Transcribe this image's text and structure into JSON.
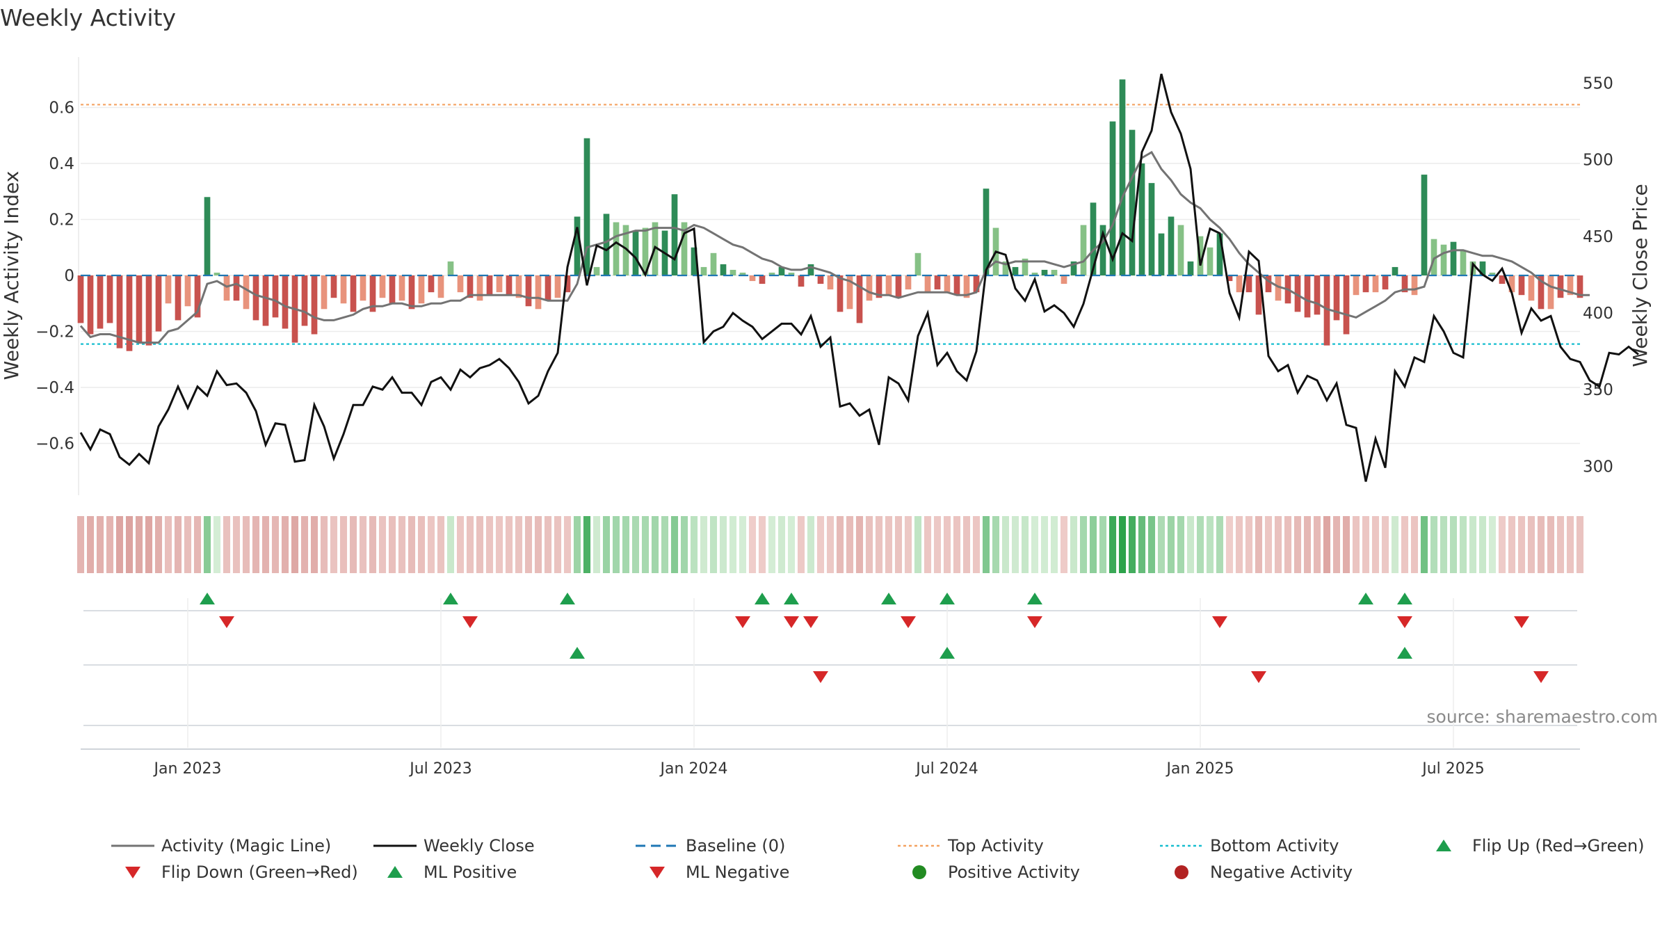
{
  "title": "Weekly Activity",
  "source": "source: sharemaestro.com",
  "chart_data": {
    "type": "bar",
    "title": "Weekly Activity",
    "xlabel": "",
    "ylabel": "Weekly Activity Index",
    "ylabel_right": "Weekly Close Price",
    "ylim": [
      -0.78,
      0.78
    ],
    "ylim_right": [
      282,
      567
    ],
    "y_ticks": [
      {
        "value": 0.6,
        "label": "0.6"
      },
      {
        "value": 0.4,
        "label": "0.4"
      },
      {
        "value": 0.2,
        "label": "0.2"
      },
      {
        "value": 0,
        "label": "0"
      },
      {
        "value": -0.2,
        "label": "−0.2"
      },
      {
        "value": -0.4,
        "label": "−0.4"
      },
      {
        "value": -0.6,
        "label": "−0.6"
      }
    ],
    "y_ticks_right": [
      {
        "value": 550,
        "label": "550"
      },
      {
        "value": 500,
        "label": "500"
      },
      {
        "value": 450,
        "label": "450"
      },
      {
        "value": 400,
        "label": "400"
      },
      {
        "value": 350,
        "label": "350"
      },
      {
        "value": 300,
        "label": "300"
      }
    ],
    "x_ticks": [
      {
        "week": 11,
        "label": "Jan 2023"
      },
      {
        "week": 37,
        "label": "Jul 2023"
      },
      {
        "week": 63,
        "label": "Jan 2024"
      },
      {
        "week": 89,
        "label": "Jul 2024"
      },
      {
        "week": 115,
        "label": "Jan 2025"
      },
      {
        "week": 141,
        "label": "Jul 2025"
      }
    ],
    "start_week_label": "2022-10-17",
    "top_activity": 0.61,
    "bottom_activity": -0.245,
    "baseline": 0,
    "activity_index": [
      -0.17,
      -0.21,
      -0.19,
      -0.17,
      -0.26,
      -0.27,
      -0.24,
      -0.25,
      -0.2,
      -0.1,
      -0.16,
      -0.11,
      -0.15,
      0.28,
      0.01,
      -0.09,
      -0.09,
      -0.12,
      -0.16,
      -0.18,
      -0.15,
      -0.19,
      -0.24,
      -0.18,
      -0.21,
      -0.12,
      -0.08,
      -0.1,
      -0.13,
      -0.09,
      -0.13,
      -0.08,
      -0.1,
      -0.09,
      -0.12,
      -0.1,
      -0.06,
      -0.08,
      0.05,
      -0.06,
      -0.08,
      -0.09,
      -0.07,
      -0.06,
      -0.07,
      -0.08,
      -0.11,
      -0.12,
      -0.09,
      -0.08,
      -0.06,
      0.21,
      0.49,
      0.03,
      0.22,
      0.19,
      0.18,
      0.16,
      0.17,
      0.19,
      0.16,
      0.29,
      0.19,
      0.1,
      0.03,
      0.08,
      0.04,
      0.02,
      0.01,
      -0.02,
      -0.03,
      0.01,
      0.03,
      0.01,
      -0.04,
      0.04,
      -0.03,
      -0.05,
      -0.13,
      -0.12,
      -0.17,
      -0.09,
      -0.08,
      -0.07,
      -0.08,
      -0.05,
      0.08,
      -0.06,
      -0.05,
      -0.06,
      -0.07,
      -0.08,
      -0.06,
      0.31,
      0.17,
      0.05,
      0.03,
      0.06,
      0.01,
      0.02,
      0.02,
      -0.03,
      0.05,
      0.18,
      0.26,
      0.18,
      0.55,
      0.7,
      0.52,
      0.4,
      0.33,
      0.15,
      0.21,
      0.18,
      0.05,
      0.14,
      0.1,
      0.15,
      -0.02,
      -0.06,
      -0.06,
      -0.14,
      -0.06,
      -0.09,
      -0.1,
      -0.13,
      -0.15,
      -0.14,
      -0.25,
      -0.16,
      -0.21,
      -0.07,
      -0.06,
      -0.06,
      -0.05,
      0.03,
      -0.06,
      -0.07,
      0.36,
      0.13,
      0.11,
      0.12,
      0.09,
      0.05,
      0.05,
      0.01,
      -0.03,
      -0.06,
      -0.07,
      -0.09,
      -0.12,
      -0.12,
      -0.08,
      -0.07,
      -0.08
    ],
    "magic_line": [
      -0.18,
      -0.22,
      -0.21,
      -0.21,
      -0.22,
      -0.23,
      -0.24,
      -0.24,
      -0.24,
      -0.2,
      -0.19,
      -0.16,
      -0.13,
      -0.03,
      -0.02,
      -0.04,
      -0.03,
      -0.05,
      -0.07,
      -0.08,
      -0.09,
      -0.11,
      -0.12,
      -0.13,
      -0.15,
      -0.16,
      -0.16,
      -0.15,
      -0.14,
      -0.12,
      -0.11,
      -0.11,
      -0.1,
      -0.1,
      -0.11,
      -0.11,
      -0.1,
      -0.1,
      -0.09,
      -0.09,
      -0.07,
      -0.07,
      -0.07,
      -0.07,
      -0.07,
      -0.07,
      -0.08,
      -0.08,
      -0.09,
      -0.09,
      -0.09,
      -0.03,
      0.1,
      0.11,
      0.12,
      0.14,
      0.15,
      0.16,
      0.16,
      0.17,
      0.17,
      0.17,
      0.16,
      0.18,
      0.17,
      0.15,
      0.13,
      0.11,
      0.1,
      0.08,
      0.06,
      0.05,
      0.03,
      0.02,
      0.02,
      0.03,
      0.02,
      0.01,
      -0.01,
      -0.02,
      -0.04,
      -0.06,
      -0.07,
      -0.07,
      -0.08,
      -0.07,
      -0.06,
      -0.06,
      -0.06,
      -0.06,
      -0.07,
      -0.07,
      -0.06,
      0.02,
      0.05,
      0.04,
      0.05,
      0.05,
      0.05,
      0.05,
      0.04,
      0.03,
      0.04,
      0.05,
      0.09,
      0.12,
      0.18,
      0.28,
      0.35,
      0.42,
      0.44,
      0.38,
      0.34,
      0.29,
      0.26,
      0.24,
      0.2,
      0.17,
      0.13,
      0.08,
      0.04,
      0.01,
      -0.02,
      -0.04,
      -0.05,
      -0.07,
      -0.09,
      -0.1,
      -0.12,
      -0.13,
      -0.14,
      -0.15,
      -0.13,
      -0.11,
      -0.09,
      -0.06,
      -0.05,
      -0.05,
      -0.04,
      0.06,
      0.08,
      0.09,
      0.09,
      0.08,
      0.07,
      0.07,
      0.06,
      0.05,
      0.03,
      0.01,
      -0.02,
      -0.04,
      -0.05,
      -0.06,
      -0.07,
      -0.07
    ],
    "weekly_close": [
      322,
      311,
      324,
      321,
      306,
      301,
      308,
      302,
      326,
      337,
      352,
      338,
      352,
      346,
      362,
      353,
      354,
      348,
      336,
      314,
      328,
      327,
      303,
      304,
      340,
      326,
      305,
      321,
      340,
      340,
      352,
      350,
      358,
      348,
      348,
      340,
      355,
      358,
      350,
      363,
      358,
      364,
      366,
      370,
      364,
      355,
      341,
      346,
      362,
      374,
      430,
      456,
      418,
      444,
      441,
      446,
      442,
      436,
      425,
      443,
      439,
      435,
      452,
      455,
      381,
      388,
      391,
      400,
      395,
      391,
      383,
      388,
      393,
      393,
      386,
      398,
      378,
      384,
      339,
      341,
      333,
      337,
      314,
      358,
      354,
      343,
      385,
      400,
      366,
      374,
      362,
      356,
      375,
      428,
      440,
      438,
      416,
      408,
      422,
      401,
      405,
      400,
      391,
      406,
      429,
      452,
      435,
      452,
      447,
      505,
      519,
      556,
      531,
      517,
      494,
      431,
      455,
      452,
      413,
      397,
      440,
      434,
      372,
      362,
      366,
      348,
      359,
      356,
      343,
      354,
      327,
      325,
      290,
      318,
      299,
      362,
      352,
      371,
      368,
      398,
      388,
      374,
      371,
      432,
      425,
      421,
      429,
      413,
      387,
      403,
      395,
      398,
      378,
      370,
      368,
      356,
      352,
      374,
      373,
      378,
      373
    ],
    "flip_up": [
      13,
      38,
      50,
      70,
      73,
      83,
      89,
      98,
      132,
      136
    ],
    "flip_down": [
      15,
      40,
      68,
      73,
      75,
      85,
      98,
      117,
      136,
      148
    ],
    "ml_positive": [
      51,
      89,
      136
    ],
    "ml_negative": [
      76,
      121,
      150
    ],
    "legend": [
      {
        "key": "magic",
        "label": "Activity (Magic Line)",
        "color": "#737373",
        "icon": "line"
      },
      {
        "key": "close",
        "label": "Weekly Close",
        "color": "#111111",
        "icon": "line"
      },
      {
        "key": "baseline",
        "label": "Baseline (0)",
        "color": "#1f77b4",
        "icon": "dashed-line"
      },
      {
        "key": "top",
        "label": "Top Activity",
        "color": "#f4a261",
        "icon": "dotted-line"
      },
      {
        "key": "bottom",
        "label": "Bottom Activity",
        "color": "#17becf",
        "icon": "dotted-line"
      },
      {
        "key": "flipup",
        "label": "Flip Up (Red→Green)",
        "color": "#1e9e4d",
        "icon": "triangle-up"
      },
      {
        "key": "flipdown",
        "label": "Flip Down (Green→Red)",
        "color": "#d62728",
        "icon": "triangle-down"
      },
      {
        "key": "mlpos",
        "label": "ML Positive",
        "color": "#1e9e4d",
        "icon": "triangle-up"
      },
      {
        "key": "mlneg",
        "label": "ML Negative",
        "color": "#d62728",
        "icon": "triangle-down"
      },
      {
        "key": "posact",
        "label": "Positive Activity",
        "color": "#228b22",
        "icon": "circle"
      },
      {
        "key": "negact",
        "label": "Negative Activity",
        "color": "#b22222",
        "icon": "circle"
      }
    ]
  }
}
